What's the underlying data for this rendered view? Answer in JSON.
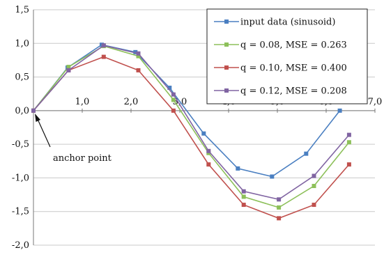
{
  "chart_data": {
    "type": "line",
    "title": "",
    "xlabel": "",
    "ylabel": "",
    "xlim": [
      0,
      7
    ],
    "ylim": [
      -2,
      1.5
    ],
    "grid": "horizontal",
    "legend_position": "top-right",
    "x_ticks": [
      "1,0",
      "2,0",
      "3,0",
      "4,0",
      "5,0",
      "6,0",
      "7,0"
    ],
    "y_ticks": [
      "1,5",
      "1,0",
      "0,5",
      "0,0",
      "-0,5",
      "-1,0",
      "-1,5",
      "-2,0"
    ],
    "series": [
      {
        "name": "input data (sinusoid)",
        "color": "#4a7fc1",
        "x": [
          0,
          0.7,
          1.4,
          2.09,
          2.79,
          3.49,
          4.19,
          4.89,
          5.59,
          6.28
        ],
        "y": [
          0.0,
          0.64,
          0.98,
          0.87,
          0.34,
          -0.34,
          -0.86,
          -0.98,
          -0.64,
          0.0
        ]
      },
      {
        "name": "q = 0.08, MSE = 0.263",
        "color": "#8dc05a",
        "x": [
          0,
          0.72,
          1.44,
          2.15,
          2.87,
          3.59,
          4.31,
          5.03,
          5.75,
          6.47
        ],
        "y": [
          0.0,
          0.65,
          0.96,
          0.81,
          0.16,
          -0.63,
          -1.28,
          -1.44,
          -1.12,
          -0.47
        ]
      },
      {
        "name": "q = 0.10, MSE = 0.400",
        "color": "#c0504d",
        "x": [
          0,
          0.72,
          1.44,
          2.15,
          2.87,
          3.59,
          4.31,
          5.03,
          5.75,
          6.47
        ],
        "y": [
          0.0,
          0.6,
          0.8,
          0.6,
          0.0,
          -0.8,
          -1.4,
          -1.6,
          -1.4,
          -0.8
        ]
      },
      {
        "name": "q = 0.12, MSE = 0.208",
        "color": "#8064a2",
        "x": [
          0,
          0.72,
          1.44,
          2.15,
          2.87,
          3.59,
          4.31,
          5.03,
          5.75,
          6.47
        ],
        "y": [
          0.0,
          0.6,
          0.97,
          0.85,
          0.24,
          -0.6,
          -1.2,
          -1.32,
          -0.97,
          -0.36
        ]
      }
    ],
    "annotations": [
      {
        "text": "anchor point",
        "x": 0,
        "y": 0
      }
    ]
  }
}
